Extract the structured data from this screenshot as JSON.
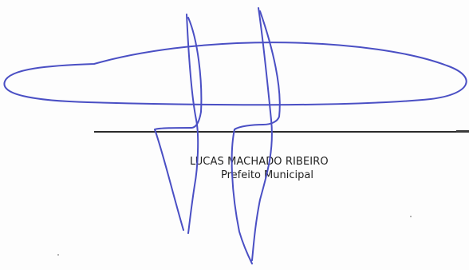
{
  "signature_block": {
    "signer_name": "LUCAS MACHADO RIBEIRO",
    "signer_title": "Prefeito Municipal"
  },
  "colors": {
    "ink": "#4a4fc4",
    "text": "#1f1f1f",
    "rule": "#2b2b2b",
    "paper": "#fdfdfd"
  }
}
